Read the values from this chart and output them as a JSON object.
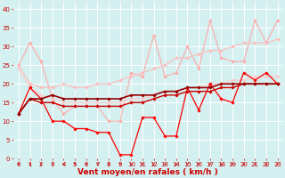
{
  "xlabel": "Vent moyen/en rafales ( km/h )",
  "x": [
    0,
    1,
    2,
    3,
    4,
    5,
    6,
    7,
    8,
    9,
    10,
    11,
    12,
    13,
    14,
    15,
    16,
    17,
    18,
    19,
    20,
    21,
    22,
    23
  ],
  "series": [
    {
      "color": "#ffaaaa",
      "alpha": 1.0,
      "lw": 0.8,
      "marker": "D",
      "ms": 1.8,
      "values": [
        25,
        31,
        26,
        16,
        12,
        14,
        14,
        14,
        10,
        10,
        23,
        22,
        33,
        22,
        23,
        30,
        24,
        37,
        27,
        26,
        26,
        37,
        31,
        37
      ]
    },
    {
      "color": "#ffbbbb",
      "alpha": 1.0,
      "lw": 0.8,
      "marker": "D",
      "ms": 1.8,
      "values": [
        25,
        20,
        19,
        19,
        20,
        19,
        19,
        20,
        20,
        21,
        22,
        23,
        24,
        25,
        27,
        27,
        28,
        29,
        29,
        30,
        31,
        31,
        31,
        32
      ]
    },
    {
      "color": "#ffcccc",
      "alpha": 1.0,
      "lw": 0.8,
      "marker": "D",
      "ms": 1.8,
      "values": [
        24,
        19,
        17,
        16,
        15,
        15,
        15,
        15,
        15,
        15,
        16,
        16,
        17,
        18,
        18,
        19,
        19,
        20,
        20,
        21,
        21,
        22,
        22,
        22
      ]
    },
    {
      "color": "#ff0000",
      "alpha": 1.0,
      "lw": 0.9,
      "marker": "D",
      "ms": 1.8,
      "values": [
        12,
        19,
        16,
        10,
        10,
        8,
        8,
        7,
        7,
        1,
        1,
        11,
        11,
        6,
        6,
        19,
        13,
        20,
        16,
        15,
        23,
        21,
        23,
        20
      ]
    },
    {
      "color": "#cc0000",
      "alpha": 1.0,
      "lw": 1.0,
      "marker": "D",
      "ms": 1.8,
      "values": [
        12,
        16,
        15,
        15,
        14,
        14,
        14,
        14,
        14,
        14,
        15,
        15,
        16,
        17,
        17,
        18,
        18,
        18,
        19,
        19,
        20,
        20,
        20,
        20
      ]
    },
    {
      "color": "#990000",
      "alpha": 1.0,
      "lw": 1.2,
      "marker": "D",
      "ms": 1.8,
      "values": [
        12,
        16,
        16,
        17,
        16,
        16,
        16,
        16,
        16,
        16,
        17,
        17,
        17,
        18,
        18,
        19,
        19,
        19,
        20,
        20,
        20,
        20,
        20,
        20
      ]
    }
  ],
  "ylim": [
    0,
    42
  ],
  "yticks": [
    0,
    5,
    10,
    15,
    20,
    25,
    30,
    35,
    40
  ],
  "xlim": [
    -0.5,
    23.5
  ],
  "bg_color": "#d4f0f0",
  "grid_color": "#ffffff",
  "tick_color": "#cc0000",
  "label_color": "#cc0000",
  "tick_fontsize": 5,
  "label_fontsize": 6.5
}
